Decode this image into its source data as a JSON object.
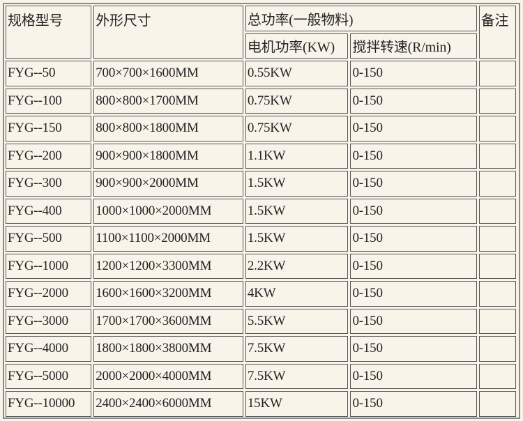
{
  "headers": {
    "model": "规格型号",
    "dimensions": "外形尺寸",
    "power_group": "总功率(一般物料)",
    "motor_power": "电机功率(KW)",
    "stir_speed": "搅拌转速(R/min)",
    "remarks": "备注"
  },
  "rows": [
    {
      "model": "FYG--50",
      "dimensions": "700×700×1600MM",
      "power": "0.55KW",
      "speed": "0-150",
      "remarks": ""
    },
    {
      "model": "FYG--100",
      "dimensions": "800×800×1700MM",
      "power": "0.75KW",
      "speed": "0-150",
      "remarks": ""
    },
    {
      "model": "FYG--150",
      "dimensions": "800×800×1800MM",
      "power": "0.75KW",
      "speed": "0-150",
      "remarks": ""
    },
    {
      "model": "FYG--200",
      "dimensions": "900×900×1800MM",
      "power": "1.1KW",
      "speed": "0-150",
      "remarks": ""
    },
    {
      "model": "FYG--300",
      "dimensions": "900×900×2000MM",
      "power": "1.5KW",
      "speed": "0-150",
      "remarks": ""
    },
    {
      "model": "FYG--400",
      "dimensions": "1000×1000×2000MM",
      "power": "1.5KW",
      "speed": "0-150",
      "remarks": ""
    },
    {
      "model": "FYG--500",
      "dimensions": "1100×1100×2000MM",
      "power": "1.5KW",
      "speed": "0-150",
      "remarks": ""
    },
    {
      "model": "FYG--1000",
      "dimensions": "1200×1200×3300MM",
      "power": "2.2KW",
      "speed": "0-150",
      "remarks": ""
    },
    {
      "model": "FYG--2000",
      "dimensions": "1600×1600×3200MM",
      "power": "4KW",
      "speed": "0-150",
      "remarks": ""
    },
    {
      "model": "FYG--3000",
      "dimensions": "1700×1700×3600MM",
      "power": "5.5KW",
      "speed": "0-150",
      "remarks": ""
    },
    {
      "model": "FYG--4000",
      "dimensions": "1800×1800×3800MM",
      "power": "7.5KW",
      "speed": "0-150",
      "remarks": ""
    },
    {
      "model": "FYG--5000",
      "dimensions": "2000×2000×4000MM",
      "power": "7.5KW",
      "speed": "0-150",
      "remarks": ""
    },
    {
      "model": "FYG--10000",
      "dimensions": "2400×2400×6000MM",
      "power": "15KW",
      "speed": "0-150",
      "remarks": ""
    }
  ]
}
